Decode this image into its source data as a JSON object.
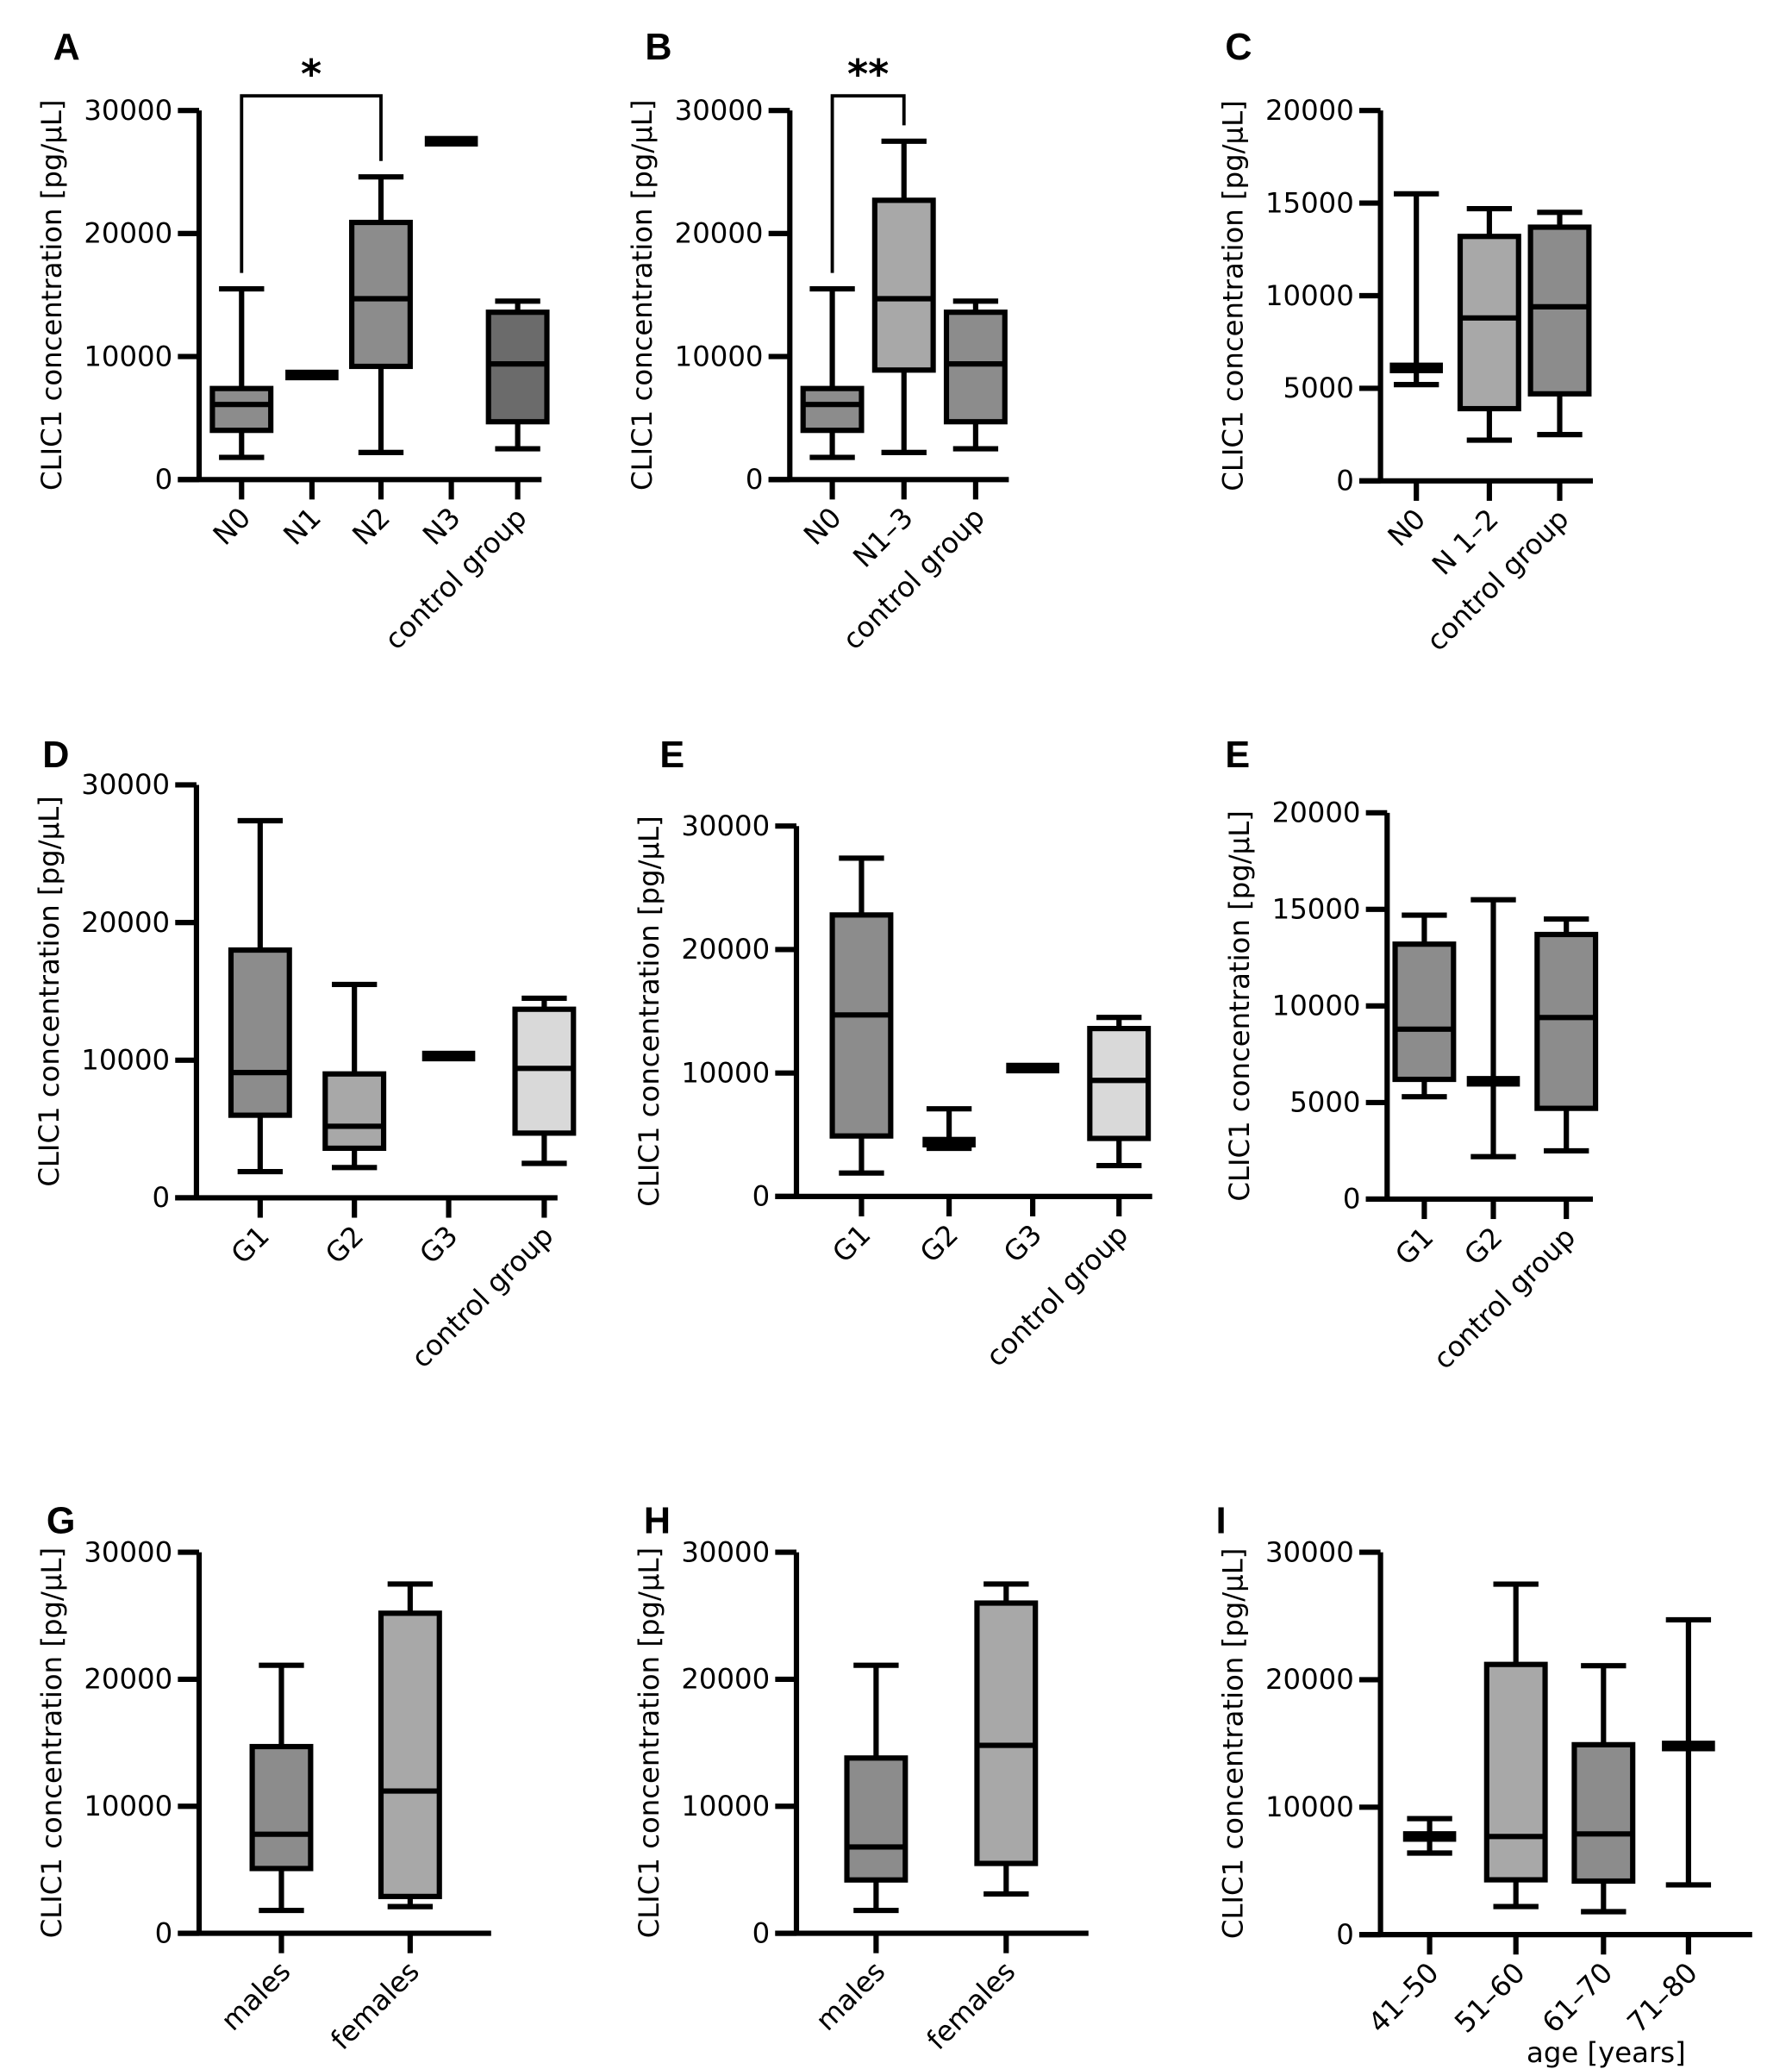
{
  "chart_data": [
    {
      "panel": "A",
      "type": "box",
      "ylabel": "CLIC1 concentration [pg/µL]",
      "xlabel": "",
      "ylim": [
        0,
        30000
      ],
      "yticks": [
        0,
        10000,
        20000,
        30000
      ],
      "categories": [
        "N0",
        "N1",
        "N2",
        "N3",
        "control group"
      ],
      "boxes": [
        {
          "min": 1800,
          "q1": 4000,
          "median": 6100,
          "q3": 7400,
          "max": 15500,
          "color": "#8c8c8c"
        },
        {
          "min": 8500,
          "q1": 8500,
          "median": 8500,
          "q3": 8500,
          "max": 8500,
          "color": "#8c8c8c"
        },
        {
          "min": 2200,
          "q1": 9200,
          "median": 14700,
          "q3": 20900,
          "max": 24600,
          "color": "#8c8c8c"
        },
        {
          "min": 27500,
          "q1": 27500,
          "median": 27500,
          "q3": 27500,
          "max": 27500,
          "color": "#8c8c8c"
        },
        {
          "min": 2500,
          "q1": 4700,
          "median": 9400,
          "q3": 13600,
          "max": 14500,
          "color": "#6b6b6b"
        }
      ],
      "significance": [
        {
          "from": 0,
          "to": 2,
          "label": "*"
        }
      ]
    },
    {
      "panel": "B",
      "type": "box",
      "ylabel": "CLIC1 concentration [pg/µL]",
      "xlabel": "",
      "ylim": [
        0,
        30000
      ],
      "yticks": [
        0,
        10000,
        20000,
        30000
      ],
      "categories": [
        "N0",
        "N1–3",
        "control group"
      ],
      "boxes": [
        {
          "min": 1800,
          "q1": 4000,
          "median": 6100,
          "q3": 7400,
          "max": 15500,
          "color": "#8c8c8c"
        },
        {
          "min": 2200,
          "q1": 8900,
          "median": 14700,
          "q3": 22700,
          "max": 27500,
          "color": "#a8a8a8"
        },
        {
          "min": 2500,
          "q1": 4700,
          "median": 9400,
          "q3": 13600,
          "max": 14500,
          "color": "#8c8c8c"
        }
      ],
      "significance": [
        {
          "from": 0,
          "to": 1,
          "label": "**"
        }
      ]
    },
    {
      "panel": "C",
      "type": "box",
      "ylabel": "CLIC1 concentration [pg/µL]",
      "xlabel": "",
      "ylim": [
        0,
        20000
      ],
      "yticks": [
        0,
        5000,
        10000,
        15000,
        20000
      ],
      "categories": [
        "N0",
        "N 1–2",
        "control group"
      ],
      "boxes": [
        {
          "min": 5200,
          "q1": 5900,
          "median": 6100,
          "q3": 6300,
          "max": 15500,
          "color": "#8c8c8c"
        },
        {
          "min": 2200,
          "q1": 3900,
          "median": 8800,
          "q3": 13200,
          "max": 14700,
          "color": "#a8a8a8"
        },
        {
          "min": 2500,
          "q1": 4700,
          "median": 9400,
          "q3": 13700,
          "max": 14500,
          "color": "#8c8c8c"
        }
      ],
      "significance": []
    },
    {
      "panel": "D",
      "type": "box",
      "ylabel": "CLIC1 concentration [pg/µL]",
      "xlabel": "",
      "ylim": [
        0,
        30000
      ],
      "yticks": [
        0,
        10000,
        20000,
        30000
      ],
      "categories": [
        "G1",
        "G2",
        "G3",
        "control group"
      ],
      "boxes": [
        {
          "min": 1900,
          "q1": 6000,
          "median": 9100,
          "q3": 18000,
          "max": 27400,
          "color": "#8c8c8c"
        },
        {
          "min": 2200,
          "q1": 3600,
          "median": 5200,
          "q3": 9000,
          "max": 15500,
          "color": "#a8a8a8"
        },
        {
          "min": 10300,
          "q1": 10300,
          "median": 10300,
          "q3": 10300,
          "max": 10300,
          "color": "#8c8c8c"
        },
        {
          "min": 2500,
          "q1": 4700,
          "median": 9400,
          "q3": 13700,
          "max": 14500,
          "color": "#d9d9d9"
        }
      ],
      "significance": []
    },
    {
      "panel": "E",
      "type": "box",
      "ylabel": "CLIC1 concentration [pg/µL]",
      "xlabel": "",
      "ylim": [
        0,
        30000
      ],
      "yticks": [
        0,
        10000,
        20000,
        30000
      ],
      "categories": [
        "G1",
        "G2",
        "G3",
        "control group"
      ],
      "boxes": [
        {
          "min": 1900,
          "q1": 4900,
          "median": 14700,
          "q3": 22800,
          "max": 27400,
          "color": "#8c8c8c"
        },
        {
          "min": 3900,
          "q1": 4200,
          "median": 4400,
          "q3": 4500,
          "max": 7100,
          "color": "#8c8c8c"
        },
        {
          "min": 10400,
          "q1": 10400,
          "median": 10400,
          "q3": 10400,
          "max": 10400,
          "color": "#8c8c8c"
        },
        {
          "min": 2500,
          "q1": 4700,
          "median": 9400,
          "q3": 13600,
          "max": 14500,
          "color": "#d9d9d9"
        }
      ],
      "significance": []
    },
    {
      "panel": "E",
      "type": "box",
      "ylabel": "CLIC1 concentration [pg/µL]",
      "xlabel": "",
      "ylim": [
        0,
        20000
      ],
      "yticks": [
        0,
        5000,
        10000,
        15000,
        20000
      ],
      "categories": [
        "G1",
        "G2",
        "control group"
      ],
      "boxes": [
        {
          "min": 5300,
          "q1": 6200,
          "median": 8800,
          "q3": 13200,
          "max": 14700,
          "color": "#8c8c8c"
        },
        {
          "min": 2200,
          "q1": 5900,
          "median": 6100,
          "q3": 6300,
          "max": 15500,
          "color": "#8c8c8c"
        },
        {
          "min": 2500,
          "q1": 4700,
          "median": 9400,
          "q3": 13700,
          "max": 14500,
          "color": "#8c8c8c"
        }
      ],
      "significance": []
    },
    {
      "panel": "G",
      "type": "box",
      "ylabel": "CLIC1 concentration [pg/µL]",
      "xlabel": "",
      "ylim": [
        0,
        30000
      ],
      "yticks": [
        0,
        10000,
        20000,
        30000
      ],
      "categories": [
        "males",
        "females"
      ],
      "boxes": [
        {
          "min": 1800,
          "q1": 5100,
          "median": 7800,
          "q3": 14700,
          "max": 21100,
          "color": "#8c8c8c"
        },
        {
          "min": 2100,
          "q1": 2900,
          "median": 11200,
          "q3": 25200,
          "max": 27500,
          "color": "#a8a8a8"
        }
      ],
      "significance": []
    },
    {
      "panel": "H",
      "type": "box",
      "ylabel": "CLIC1 concentration [pg/µL]",
      "xlabel": "",
      "ylim": [
        0,
        30000
      ],
      "yticks": [
        0,
        10000,
        20000,
        30000
      ],
      "categories": [
        "males",
        "females"
      ],
      "boxes": [
        {
          "min": 1800,
          "q1": 4200,
          "median": 6800,
          "q3": 13800,
          "max": 21100,
          "color": "#8c8c8c"
        },
        {
          "min": 3100,
          "q1": 5500,
          "median": 14800,
          "q3": 26000,
          "max": 27500,
          "color": "#a8a8a8"
        }
      ],
      "significance": []
    },
    {
      "panel": "I",
      "type": "box",
      "ylabel": "CLIC1 concentration [pg/µL]",
      "xlabel": "age [years]",
      "ylim": [
        0,
        30000
      ],
      "yticks": [
        0,
        10000,
        20000,
        30000
      ],
      "categories": [
        "41–50",
        "51–60",
        "61–70",
        "71–80"
      ],
      "boxes": [
        {
          "min": 6400,
          "q1": 7500,
          "median": 7700,
          "q3": 7900,
          "max": 9100,
          "color": "#8c8c8c"
        },
        {
          "min": 2200,
          "q1": 4300,
          "median": 7700,
          "q3": 21200,
          "max": 27500,
          "color": "#a8a8a8"
        },
        {
          "min": 1800,
          "q1": 4200,
          "median": 7900,
          "q3": 14900,
          "max": 21100,
          "color": "#8c8c8c"
        },
        {
          "min": 3900,
          "q1": 14600,
          "median": 14800,
          "q3": 15000,
          "max": 24700,
          "color": "#8c8c8c"
        }
      ],
      "significance": []
    }
  ]
}
